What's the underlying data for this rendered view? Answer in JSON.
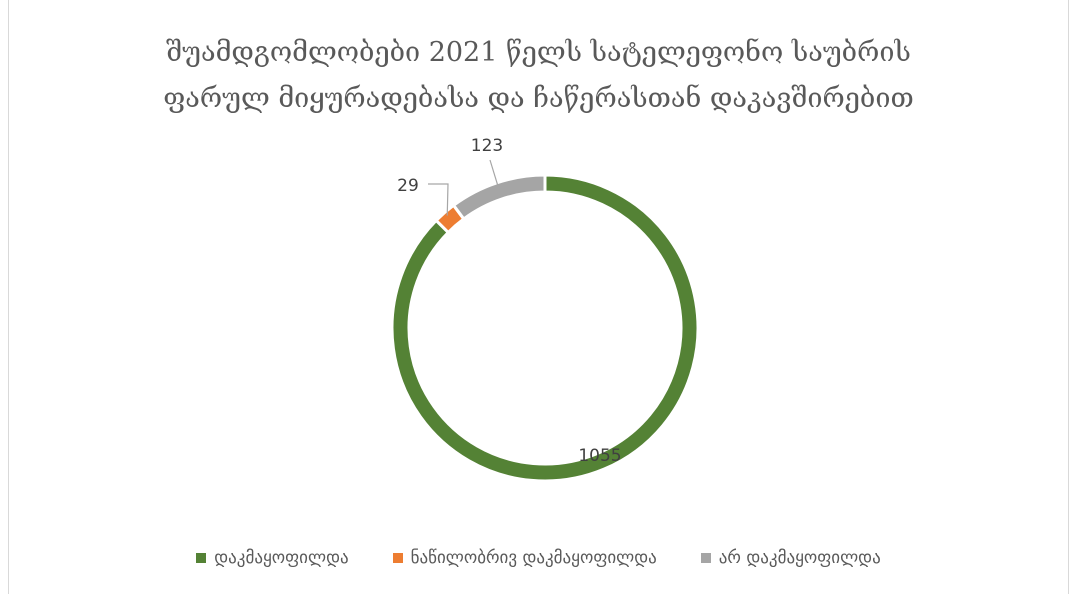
{
  "chart_data": {
    "type": "pie",
    "title_lines": [
      "შუამდგომლობები 2021 წელს სატელეფონო საუბრის",
      "ფარულ მიყურადებასა და ჩაწერასთან დაკავშირებით"
    ],
    "categories": [
      "დაკმაყოფილდა",
      "ნაწილობრივ დაკმაყოფილდა",
      "არ დაკმაყოფილდა"
    ],
    "values": [
      1055,
      29,
      123
    ],
    "colors": [
      "#548235",
      "#ed7d31",
      "#a5a5a5"
    ],
    "data_labels": [
      "1055",
      "29",
      "123"
    ],
    "legend_position": "bottom",
    "style": "doughnut"
  }
}
